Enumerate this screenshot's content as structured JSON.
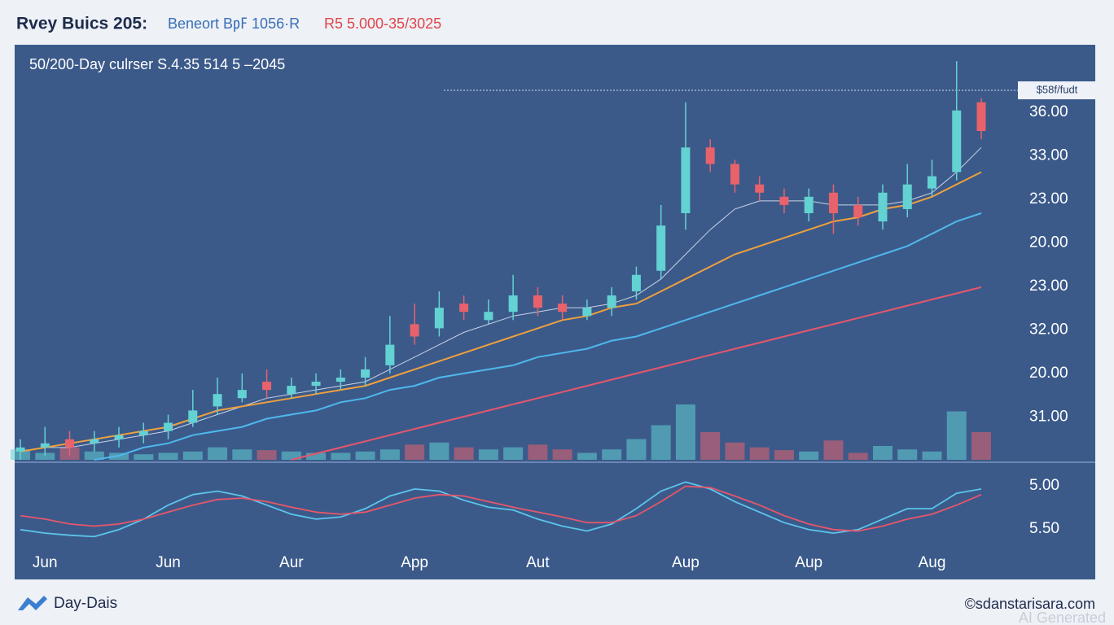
{
  "header": {
    "title": "Rvey Buics 205:",
    "subtitle_blue": "Beneort B㎊ 1056·R",
    "subtitle_red": "R5 5.000-35/3025"
  },
  "chart_data": {
    "type": "candlestick",
    "title": "50/200-Day culrser S.4.35 514 5 –2045",
    "price_tag": "$58f/fudt",
    "categories": [
      null,
      "Jun",
      null,
      null,
      null,
      null,
      "Jun",
      null,
      null,
      null,
      null,
      "Aur",
      null,
      null,
      null,
      null,
      "App",
      null,
      null,
      null,
      null,
      "Aut",
      null,
      null,
      null,
      null,
      null,
      "Aup",
      null,
      null,
      null,
      null,
      "Aup",
      null,
      null,
      null,
      null,
      "Aug",
      null,
      null
    ],
    "ylim": [
      0,
      100
    ],
    "price_axis_labels": [
      "36.00",
      "33.00",
      "23.00",
      "20.00",
      "23.00",
      "32.00",
      "20.00",
      "31.00"
    ],
    "up_color": "#63d2d2",
    "down_color": "#e8626c",
    "open": [
      2,
      3,
      5,
      4,
      5,
      6,
      7,
      9,
      13,
      15,
      19,
      16,
      18,
      19,
      20,
      23,
      33,
      32,
      38,
      34,
      36,
      40,
      38,
      35,
      37,
      41,
      46,
      60,
      76,
      72,
      67,
      64,
      60,
      65,
      62,
      58,
      61,
      66,
      70,
      87
    ],
    "high": [
      5,
      8,
      7,
      7,
      8,
      9,
      11,
      17,
      20,
      21,
      22,
      20,
      21,
      22,
      25,
      35,
      38,
      41,
      40,
      39,
      45,
      42,
      40,
      39,
      42,
      47,
      62,
      87,
      78,
      73,
      69,
      66,
      66,
      67,
      64,
      67,
      72,
      73,
      97,
      88
    ],
    "low": [
      0,
      1,
      1,
      2,
      3,
      4,
      5,
      8,
      11,
      14,
      15,
      15,
      16,
      17,
      18,
      21,
      28,
      30,
      34,
      33,
      34,
      35,
      34,
      34,
      35,
      39,
      44,
      56,
      70,
      65,
      63,
      60,
      58,
      55,
      57,
      56,
      59,
      64,
      68,
      78
    ],
    "close": [
      3,
      4,
      3,
      5,
      6,
      7,
      9,
      12,
      16,
      17,
      17,
      18,
      19,
      20,
      22,
      28,
      30,
      37,
      36,
      36,
      40,
      37,
      36,
      37,
      40,
      45,
      57,
      76,
      72,
      67,
      65,
      62,
      64,
      60,
      59,
      65,
      67,
      69,
      85,
      80
    ],
    "moving_averages": [
      {
        "color": "#c9d3e6",
        "values": [
          2,
          3,
          3,
          4,
          5,
          6,
          7,
          9,
          11,
          13,
          15,
          16,
          17,
          18,
          19,
          22,
          25,
          28,
          31,
          33,
          35,
          36,
          37,
          37,
          38,
          40,
          44,
          50,
          56,
          61,
          63,
          63,
          63,
          62,
          62,
          62,
          63,
          65,
          70,
          76
        ]
      },
      {
        "color": "#f0a03c",
        "values": [
          2,
          3,
          4,
          5,
          6,
          7,
          8,
          10,
          12,
          13,
          14,
          15,
          16,
          17,
          18,
          20,
          22,
          24,
          26,
          28,
          30,
          32,
          34,
          35,
          37,
          38,
          41,
          44,
          47,
          50,
          52,
          54,
          56,
          58,
          59,
          61,
          62,
          64,
          67,
          70
        ]
      },
      {
        "color": "#4fb8ec",
        "values": [
          null,
          null,
          null,
          0,
          1,
          3,
          4,
          6,
          7,
          8,
          10,
          11,
          12,
          14,
          15,
          17,
          18,
          20,
          21,
          22,
          23,
          25,
          26,
          27,
          29,
          30,
          32,
          34,
          36,
          38,
          40,
          42,
          44,
          46,
          48,
          50,
          52,
          55,
          58,
          60
        ]
      },
      {
        "color": "#e8566a",
        "values": [
          null,
          null,
          null,
          null,
          null,
          null,
          null,
          null,
          null,
          null,
          null,
          0,
          1.5,
          3,
          4.5,
          6,
          7.5,
          9,
          10.5,
          12,
          13.5,
          15,
          16.5,
          18,
          19.5,
          21,
          22.5,
          24,
          25.5,
          27,
          28.5,
          30,
          31.5,
          33,
          34.5,
          36,
          37.5,
          39,
          40.5,
          42
        ]
      }
    ],
    "volume": {
      "ylim": [
        0,
        100
      ],
      "values": [
        15,
        10,
        18,
        12,
        10,
        8,
        10,
        12,
        18,
        15,
        14,
        12,
        10,
        10,
        12,
        15,
        22,
        25,
        18,
        15,
        18,
        22,
        15,
        10,
        15,
        30,
        50,
        80,
        40,
        25,
        18,
        14,
        12,
        28,
        10,
        20,
        15,
        12,
        70,
        40
      ]
    },
    "oscillator": {
      "ylim": [
        0,
        100
      ],
      "axis_labels": [
        "5.00",
        "5.50"
      ],
      "series": [
        {
          "color": "#5cc4ea",
          "values": [
            20,
            15,
            12,
            10,
            20,
            35,
            55,
            70,
            75,
            68,
            55,
            42,
            35,
            38,
            50,
            68,
            78,
            75,
            62,
            52,
            48,
            35,
            25,
            18,
            28,
            50,
            75,
            88,
            78,
            60,
            45,
            30,
            20,
            15,
            20,
            35,
            50,
            50,
            72,
            78
          ]
        },
        {
          "color": "#e8566a",
          "values": [
            40,
            35,
            28,
            25,
            28,
            35,
            45,
            55,
            63,
            65,
            60,
            52,
            45,
            42,
            45,
            55,
            65,
            70,
            68,
            60,
            52,
            45,
            38,
            30,
            30,
            40,
            60,
            82,
            80,
            68,
            55,
            40,
            28,
            20,
            18,
            25,
            35,
            42,
            55,
            70
          ]
        }
      ]
    }
  },
  "footer": {
    "brand": "Day-Dais",
    "site": "©sdanstarisara.com",
    "watermark": "AI Generated"
  }
}
